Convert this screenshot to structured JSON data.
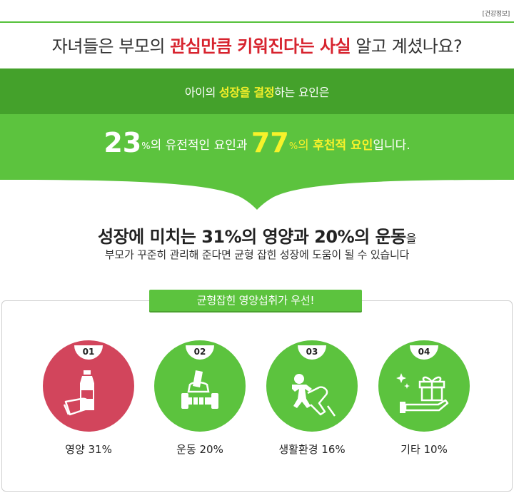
{
  "tag": "[건강정보]",
  "headline": {
    "pre": "자녀들은 부모의 ",
    "highlight": "관심만큼 키워진다는 사실",
    "post": " 알고 계셨나요?"
  },
  "band": {
    "sub_pre": "아이의 ",
    "sub_hl1": "성장",
    "sub_mid1": "을 ",
    "sub_hl2": "결정",
    "sub_post": "하는 요인은"
  },
  "stats": {
    "genetic_value": "23",
    "unit": "%",
    "genetic_text": "의 유전적인 요인과 ",
    "acquired_value": "77",
    "acquired_pre": "의 ",
    "acquired_text": "후천적 요인",
    "tail": "입니다."
  },
  "lead": {
    "main": "성장에 미치는 31%의 영양과 20%의 운동",
    "suffix": "을",
    "sub": "부모가 꾸준히 관리해 준다면 균형 잡힌 성장에 도움이 될 수 있습니다"
  },
  "pill": "균형잡힌 영양섭취가 우선!",
  "items": [
    {
      "num": "01",
      "label": "영양 31%",
      "icon": "bottle-hand-icon",
      "color": "#d2455c"
    },
    {
      "num": "02",
      "label": "운동 20%",
      "icon": "dumbbell-hand-icon",
      "color": "#5cc33e"
    },
    {
      "num": "03",
      "label": "생활환경 16%",
      "icon": "gingerbread-hand-icon",
      "color": "#5cc33e"
    },
    {
      "num": "04",
      "label": "기타 10%",
      "icon": "gift-hand-icon",
      "color": "#5cc33e"
    }
  ],
  "colors": {
    "accent_red": "#d7232e",
    "green_dark": "#44a12b",
    "green_light": "#5cc33e",
    "yellow": "#f7f22a",
    "pink": "#d2455c"
  }
}
